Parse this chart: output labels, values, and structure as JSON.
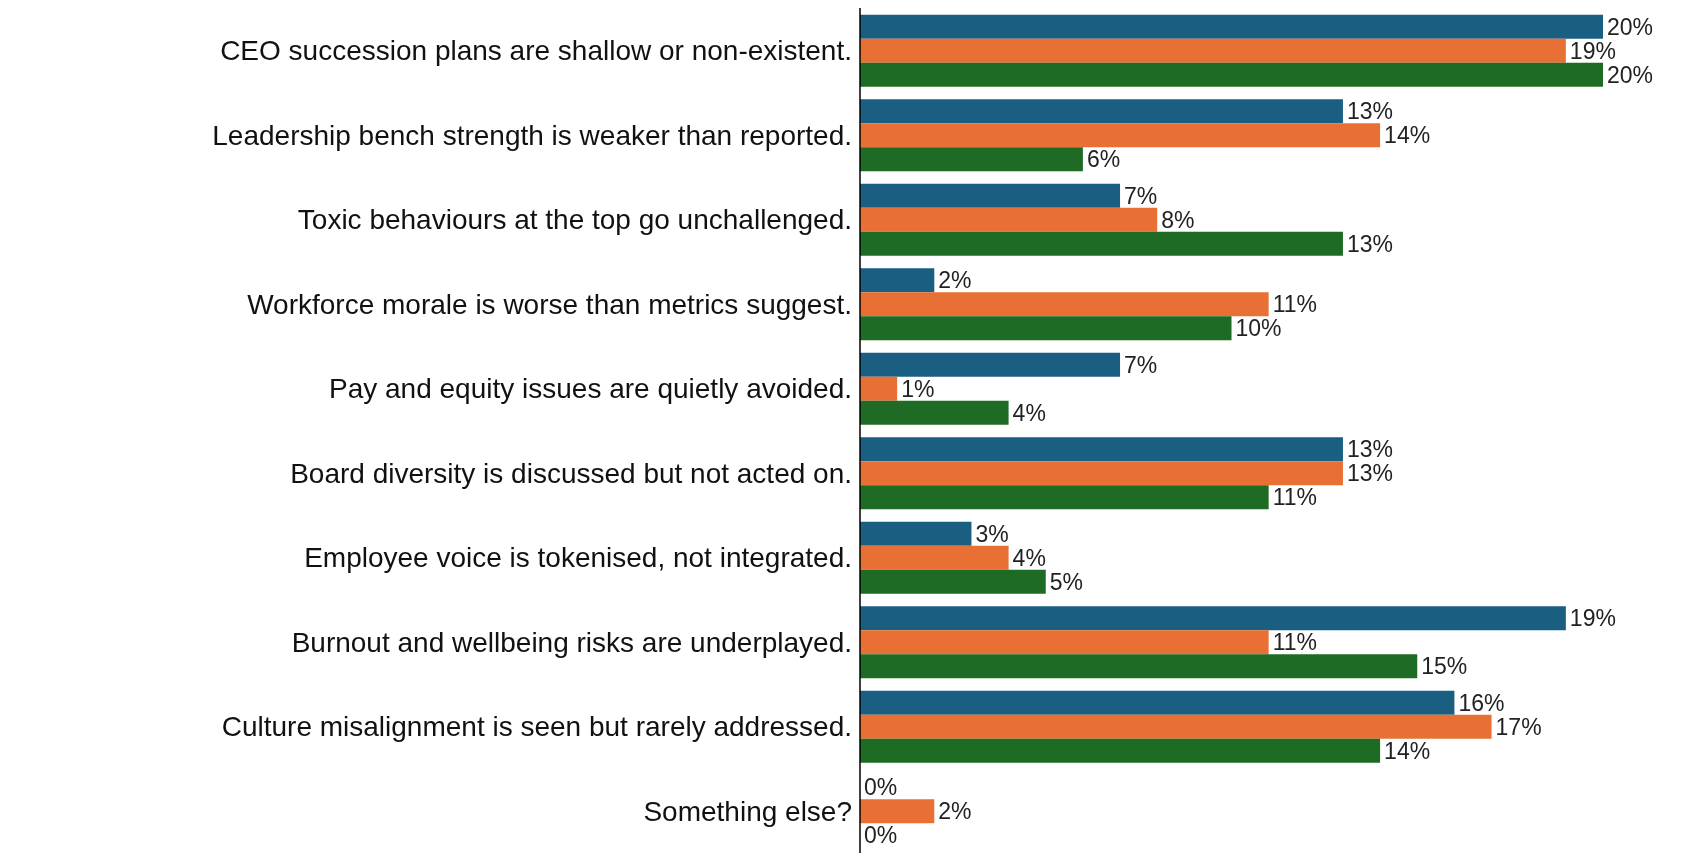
{
  "chart_data": {
    "type": "bar",
    "orientation": "horizontal",
    "categories": [
      "CEO succession plans are shallow or non-existent.",
      "Leadership bench strength is weaker than reported.",
      "Toxic behaviours at the top go unchallenged.",
      "Workforce morale is worse than metrics suggest.",
      "Pay and equity issues are quietly avoided.",
      "Board diversity is discussed but not acted on.",
      "Employee voice is tokenised, not integrated.",
      "Burnout and wellbeing risks are underplayed.",
      "Culture misalignment is seen but rarely addressed.",
      "Something else?"
    ],
    "series": [
      {
        "color": "#1a5f82",
        "values": [
          20,
          13,
          7,
          2,
          7,
          13,
          3,
          19,
          16,
          0
        ],
        "value_labels": [
          "20%",
          "13%",
          "7%",
          "2%",
          "7%",
          "13%",
          "3%",
          "19%",
          "16%",
          "0%"
        ]
      },
      {
        "color": "#e87035",
        "values": [
          19,
          14,
          8,
          11,
          1,
          13,
          4,
          11,
          17,
          2
        ],
        "value_labels": [
          "19%",
          "14%",
          "8%",
          "11%",
          "1%",
          "13%",
          "4%",
          "11%",
          "17%",
          "2%"
        ]
      },
      {
        "color": "#1e6b25",
        "values": [
          20,
          6,
          13,
          10,
          4,
          11,
          5,
          15,
          14,
          0
        ],
        "value_labels": [
          "20%",
          "6%",
          "13%",
          "10%",
          "4%",
          "11%",
          "5%",
          "15%",
          "14%",
          "0%"
        ]
      }
    ],
    "legend": false,
    "grid": false
  }
}
